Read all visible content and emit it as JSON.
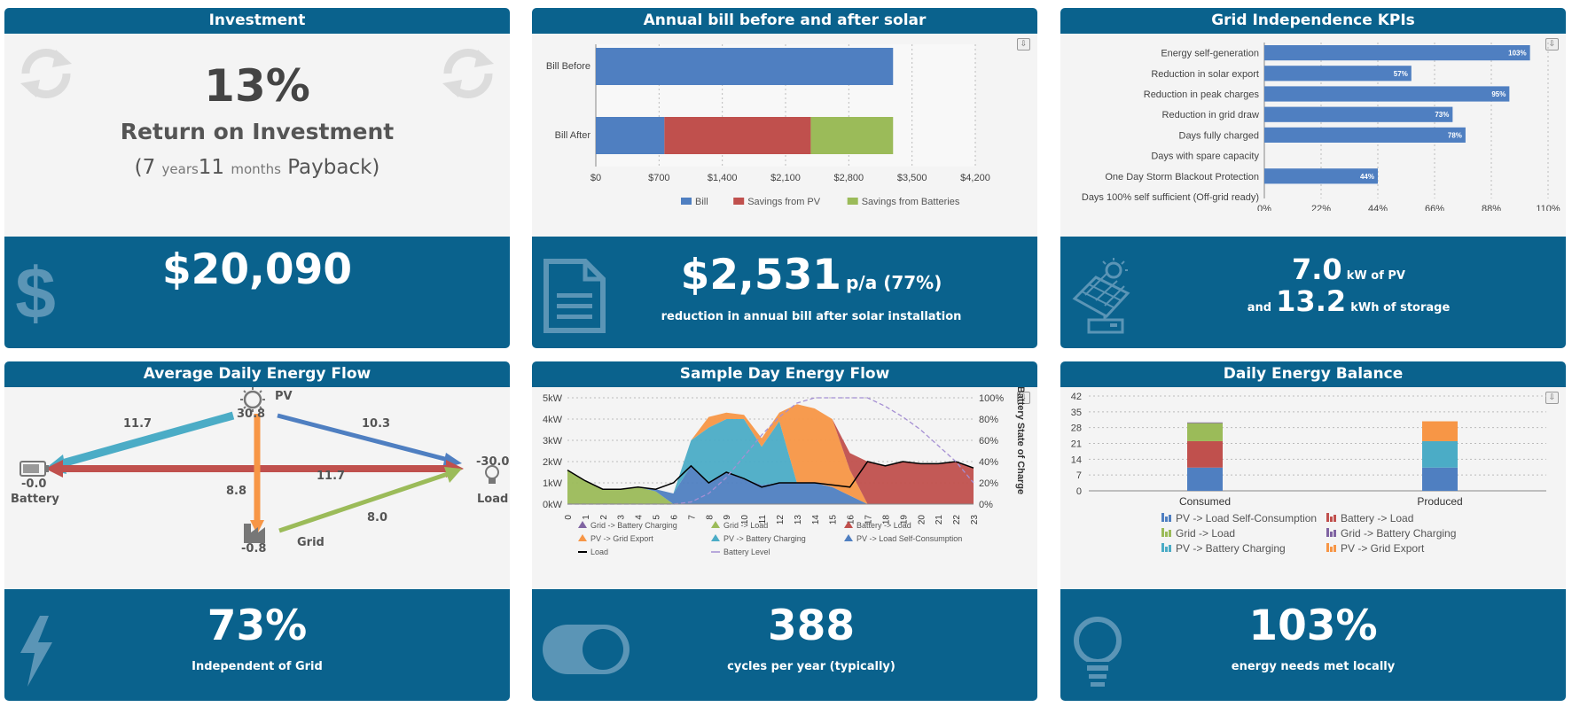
{
  "colors": {
    "brand": "#0a628d",
    "bill": "#4f7fc1",
    "pv": "#c0504d",
    "batt": "#9bbb59",
    "teal": "#4bacc6",
    "orange": "#f79646",
    "purple": "#8064a2"
  },
  "investment": {
    "title": "Investment",
    "roi_value": "13%",
    "roi_label": "Return on Investment",
    "pb_open": "(7",
    "pb_years": "years",
    "pb_months_num": "11",
    "pb_months": "months",
    "pb_close": "Payback)",
    "amount": "$20,090",
    "icons": [
      "refresh-icon",
      "dollar-icon"
    ]
  },
  "bill": {
    "title": "Annual bill before and after solar",
    "amount": "$2,531",
    "suffix": "p/a (77%)",
    "caption": "reduction in annual bill after solar installation",
    "chart_data": {
      "type": "bar",
      "orientation": "horizontal",
      "stacked": true,
      "categories": [
        "Bill Before",
        "Bill After"
      ],
      "series": [
        {
          "name": "Bill",
          "values": [
            3290,
            759
          ]
        },
        {
          "name": "Savings from PV",
          "values": [
            0,
            1620
          ]
        },
        {
          "name": "Savings from Batteries",
          "values": [
            0,
            911
          ]
        }
      ],
      "xticks": [
        "$0",
        "$700",
        "$1,400",
        "$2,100",
        "$2,800",
        "$3,500",
        "$4,200"
      ],
      "xlim": [
        0,
        4200
      ],
      "legend": "bottom"
    }
  },
  "kpi": {
    "title": "Grid Independence KPIs",
    "pv": "7.0",
    "pv_unit": "kW of PV",
    "and": "and",
    "storage": "13.2",
    "storage_unit": "kWh of storage",
    "chart_data": {
      "type": "bar",
      "orientation": "horizontal",
      "categories": [
        "Energy self-generation",
        "Reduction in solar export",
        "Reduction in peak charges",
        "Reduction in grid draw",
        "Days fully charged",
        "Days with spare capacity",
        "One Day Storm Blackout Protection",
        "Days 100% self sufficient (Off-grid ready)"
      ],
      "values": [
        103,
        57,
        95,
        73,
        78,
        0,
        44,
        0
      ],
      "labels": [
        "103%",
        "57%",
        "95%",
        "73%",
        "78%",
        "",
        "44%",
        ""
      ],
      "xticks": [
        "0%",
        "22%",
        "44%",
        "66%",
        "88%",
        "110%"
      ],
      "xlim": [
        0,
        110
      ]
    }
  },
  "flow": {
    "title": "Average Daily Energy Flow",
    "pv_label": "PV",
    "pv_val": "30.8",
    "battery_label": "Battery",
    "battery_val": "-0.0",
    "load_label": "Load",
    "load_val": "-30.0",
    "grid_label": "Grid",
    "grid_val": "-0.8",
    "e_pv_batt": "11.7",
    "e_pv_load": "10.3",
    "e_batt_load": "11.7",
    "e_pv_grid": "8.8",
    "e_grid_load": "8.0",
    "pct": "73%",
    "caption": "Independent of Grid"
  },
  "sample": {
    "title": "Sample Day Energy Flow",
    "value": "388",
    "caption": "cycles per year (typically)",
    "chart_data": {
      "type": "area",
      "x": [
        0,
        1,
        2,
        3,
        4,
        5,
        6,
        7,
        8,
        9,
        10,
        11,
        12,
        13,
        14,
        15,
        16,
        17,
        18,
        19,
        20,
        21,
        22,
        23
      ],
      "yticks_left": [
        "0kW",
        "1kW",
        "2kW",
        "3kW",
        "4kW",
        "5kW"
      ],
      "yticks_right": [
        "0%",
        "20%",
        "40%",
        "60%",
        "80%",
        "100%"
      ],
      "ylabel_right": "Battery State of Charge",
      "series": [
        {
          "name": "Grid -> Load",
          "values": [
            1.6,
            1.1,
            0.7,
            0.7,
            0.8,
            0.6,
            0,
            0,
            0,
            0,
            0,
            0,
            0,
            0,
            0,
            0,
            0,
            0,
            0,
            0,
            0,
            0,
            0,
            0
          ]
        },
        {
          "name": "PV -> Load Self-Consumption",
          "values": [
            0,
            0,
            0,
            0,
            0,
            0.1,
            0.5,
            1.8,
            1.0,
            1.5,
            1.2,
            0.9,
            1.0,
            1.0,
            1.0,
            0.8,
            0.4,
            0,
            0,
            0,
            0,
            0,
            0,
            0
          ]
        },
        {
          "name": "PV -> Battery Charging",
          "values": [
            0,
            0,
            0,
            0,
            0,
            0,
            0,
            1.2,
            2.6,
            2.5,
            2.8,
            1.8,
            2.9,
            0,
            0,
            0,
            0,
            0,
            0,
            0,
            0,
            0,
            0,
            0
          ]
        },
        {
          "name": "PV -> Grid Export",
          "values": [
            0,
            0,
            0,
            0,
            0,
            0,
            0,
            0,
            0.5,
            0.3,
            0.2,
            0.4,
            0.4,
            3.7,
            3.5,
            3.2,
            1.2,
            0,
            0,
            0,
            0,
            0,
            0,
            0
          ]
        },
        {
          "name": "Battery -> Load",
          "values": [
            0,
            0,
            0,
            0,
            0,
            0,
            0,
            0,
            0,
            0,
            0,
            0,
            0,
            0,
            0,
            0,
            0.8,
            2.0,
            1.8,
            2.0,
            1.9,
            1.9,
            2.0,
            1.7
          ]
        },
        {
          "name": "Grid -> Battery Charging",
          "values": [
            0,
            0,
            0,
            0,
            0,
            0,
            0,
            0,
            0,
            0,
            0,
            0,
            0,
            0,
            0,
            0,
            0,
            0,
            0,
            0,
            0,
            0,
            0,
            0
          ]
        },
        {
          "name": "Load",
          "values": [
            1.6,
            1.1,
            0.7,
            0.7,
            0.8,
            0.7,
            1.0,
            1.8,
            1.0,
            1.5,
            1.2,
            0.8,
            1.0,
            1.0,
            1.0,
            0.9,
            0.8,
            2.0,
            1.8,
            2.0,
            1.9,
            1.9,
            2.0,
            1.7
          ]
        },
        {
          "name": "Battery Level",
          "values": [
            0,
            0,
            0,
            0,
            0,
            0,
            0,
            2,
            10,
            25,
            45,
            65,
            82,
            95,
            100,
            100,
            100,
            100,
            92,
            82,
            70,
            55,
            40,
            20
          ]
        }
      ],
      "legend": [
        "Grid -> Battery Charging",
        "Grid -> Load",
        "Battery -> Load",
        "PV -> Grid Export",
        "PV -> Battery Charging",
        "PV -> Load Self-Consumption",
        "Load",
        "Battery Level"
      ]
    }
  },
  "balance": {
    "title": "Daily Energy Balance",
    "value": "103%",
    "caption": "energy needs met locally",
    "chart_data": {
      "type": "bar",
      "stacked": true,
      "categories": [
        "Consumed",
        "Produced"
      ],
      "yticks": [
        "0",
        "7",
        "14",
        "21",
        "28",
        "35",
        "42"
      ],
      "ylim": [
        0,
        42
      ],
      "series": [
        {
          "name": "PV -> Load Self-Consumption",
          "values": [
            10.3,
            10.3
          ]
        },
        {
          "name": "Battery -> Load",
          "values": [
            11.7,
            0
          ]
        },
        {
          "name": "Grid -> Load",
          "values": [
            8.0,
            0
          ]
        },
        {
          "name": "Grid -> Battery Charging",
          "values": [
            0.3,
            0
          ]
        },
        {
          "name": "PV -> Battery Charging",
          "values": [
            0,
            11.7
          ]
        },
        {
          "name": "PV -> Grid Export",
          "values": [
            0,
            8.8
          ]
        }
      ],
      "legend": [
        "PV -> Load Self-Consumption",
        "Battery -> Load",
        "Grid -> Load",
        "Grid -> Battery Charging",
        "PV -> Battery Charging",
        "PV -> Grid Export"
      ]
    }
  }
}
